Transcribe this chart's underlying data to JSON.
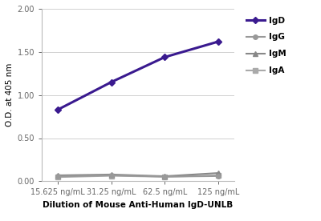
{
  "x_labels": [
    "15.625 ng/mL",
    "31.25 ng/mL",
    "62.5 ng/mL",
    "125 ng/mL"
  ],
  "x_values": [
    1,
    2,
    3,
    4
  ],
  "series": {
    "IgD": {
      "y": [
        0.83,
        1.15,
        1.44,
        1.62
      ],
      "color": "#3a1a8f",
      "marker": "D",
      "markersize": 4,
      "linewidth": 2.2,
      "zorder": 5
    },
    "IgG": {
      "y": [
        0.055,
        0.07,
        0.053,
        0.06
      ],
      "color": "#999999",
      "marker": "o",
      "markersize": 4,
      "linewidth": 1.5,
      "zorder": 4
    },
    "IgM": {
      "y": [
        0.068,
        0.078,
        0.058,
        0.095
      ],
      "color": "#888888",
      "marker": "^",
      "markersize": 4,
      "linewidth": 1.5,
      "zorder": 3
    },
    "IgA": {
      "y": [
        0.048,
        0.063,
        0.052,
        0.068
      ],
      "color": "#aaaaaa",
      "marker": "s",
      "markersize": 4,
      "linewidth": 1.5,
      "zorder": 2
    }
  },
  "ylabel": "O.D. at 405 nm",
  "xlabel": "Dilution of Mouse Anti-Human IgD-UNLB",
  "ylim": [
    0.0,
    2.0
  ],
  "yticks": [
    0.0,
    0.5,
    1.0,
    1.5,
    2.0
  ],
  "legend_fontsize": 7.5,
  "axis_label_fontsize": 7.5,
  "tick_fontsize": 7,
  "background_color": "#ffffff",
  "grid_color": "#d0d0d0",
  "spine_color": "#bbbbbb"
}
